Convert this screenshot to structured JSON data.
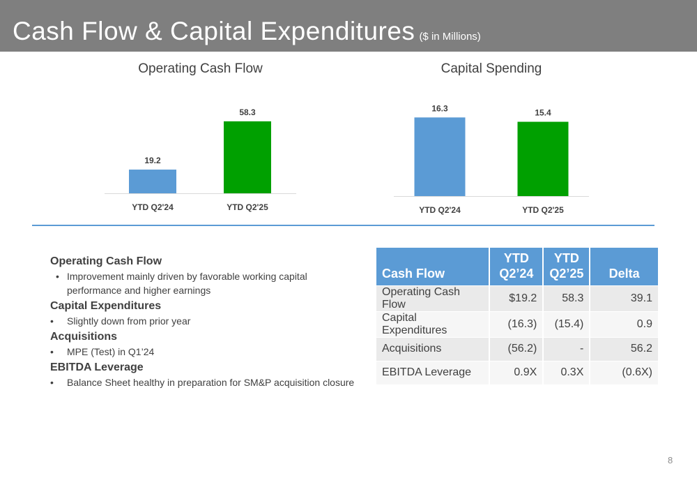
{
  "header": {
    "title": "Cash Flow & Capital Expenditures",
    "subtitle": "($ in Millions)",
    "bar_color": "#7f7f7f"
  },
  "chart_data": [
    {
      "type": "bar",
      "title": "Operating Cash Flow",
      "categories": [
        "YTD Q2'24",
        "YTD Q2'25"
      ],
      "values": [
        19.2,
        58.3
      ],
      "colors": [
        "#5b9bd5",
        "#00a000"
      ],
      "data_labels": [
        "19.2",
        "58.3"
      ],
      "ylim": [
        0,
        65
      ],
      "xlabel": "",
      "ylabel": "",
      "grid": false,
      "legend": "none"
    },
    {
      "type": "bar",
      "title": "Capital Spending",
      "categories": [
        "YTD Q2'24",
        "YTD Q2'25"
      ],
      "values": [
        16.3,
        15.4
      ],
      "colors": [
        "#5b9bd5",
        "#00a000"
      ],
      "data_labels": [
        "16.3",
        "15.4"
      ],
      "ylim": [
        0,
        17.5
      ],
      "xlabel": "",
      "ylabel": "",
      "grid": false,
      "legend": "none"
    }
  ],
  "notes": [
    {
      "heading": "Operating Cash Flow",
      "bullets": [
        "Improvement mainly driven by favorable working capital performance and higher earnings"
      ]
    },
    {
      "heading": "Capital Expenditures",
      "bullets": [
        "Slightly down from prior year"
      ]
    },
    {
      "heading": "Acquisitions",
      "bullets": [
        "MPE (Test) in Q1’24"
      ]
    },
    {
      "heading": "EBITDA Leverage",
      "bullets": [
        "Balance Sheet healthy in preparation for SM&P acquisition closure"
      ]
    }
  ],
  "table": {
    "headers": [
      {
        "line1": "",
        "line2": "Cash Flow"
      },
      {
        "line1": "YTD",
        "line2": "Q2’24"
      },
      {
        "line1": "YTD",
        "line2": "Q2’25"
      },
      {
        "line1": "",
        "line2": "Delta"
      }
    ],
    "rows": [
      [
        "Operating Cash Flow",
        "$19.2",
        "58.3",
        "39.1"
      ],
      [
        "Capital Expenditures",
        "(16.3)",
        "(15.4)",
        "0.9"
      ],
      [
        "Acquisitions",
        "(56.2)",
        "-",
        "56.2"
      ],
      [
        "EBITDA Leverage",
        "0.9X",
        "0.3X",
        "(0.6X)"
      ]
    ],
    "header_color": "#5b9bd5"
  },
  "page_number": "8"
}
